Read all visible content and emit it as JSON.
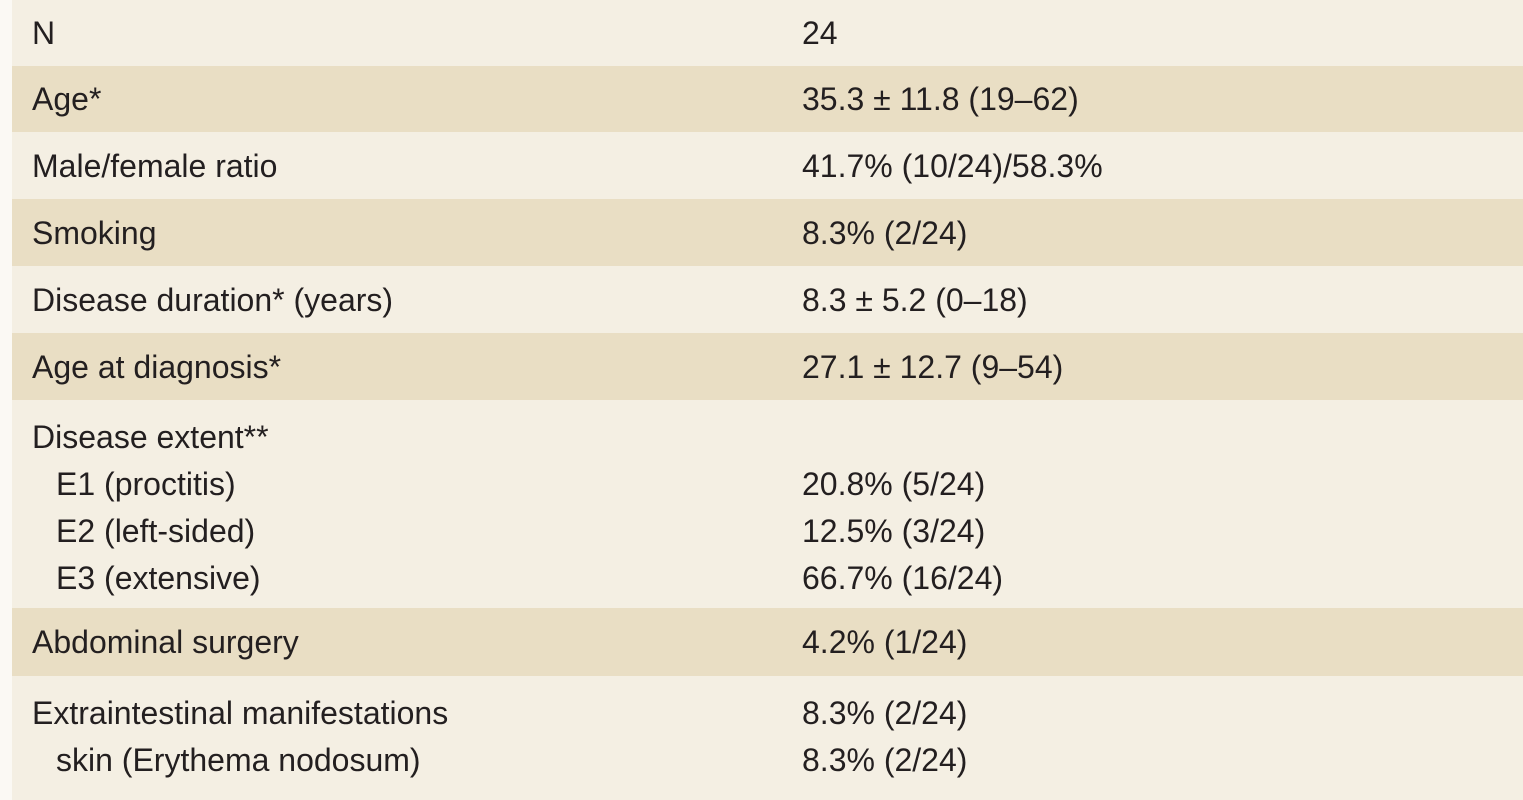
{
  "table": {
    "rows": [
      [
        {
          "label": "N",
          "value": "24"
        }
      ],
      [
        {
          "label": "Age*",
          "value": "35.3 ± 11.8 (19–62)"
        }
      ],
      [
        {
          "label": "Male/female ratio",
          "value": "41.7% (10/24)/58.3%"
        }
      ],
      [
        {
          "label": "Smoking",
          "value": "8.3% (2/24)"
        }
      ],
      [
        {
          "label": "Disease duration* (years)",
          "value": "8.3 ± 5.2 (0–18)"
        }
      ],
      [
        {
          "label": "Age at diagnosis*",
          "value": "27.1 ± 12.7 (9–54)"
        }
      ],
      [
        {
          "label": "Disease extent**"
        },
        {
          "label": "E1 (proctitis)",
          "value": "20.8% (5/24)"
        },
        {
          "label": "E2 (left-sided)",
          "value": "12.5% (3/24)"
        },
        {
          "label": "E3 (extensive)",
          "value": "66.7% (16/24)"
        }
      ],
      [
        {
          "label": "Abdominal surgery",
          "value": "4.2% (1/24)"
        }
      ],
      [
        {
          "label": "Extraintestinal manifestations",
          "value": "8.3% (2/24)"
        },
        {
          "label": "skin (Erythema nodosum)",
          "value": "8.3% (2/24)"
        }
      ]
    ]
  }
}
